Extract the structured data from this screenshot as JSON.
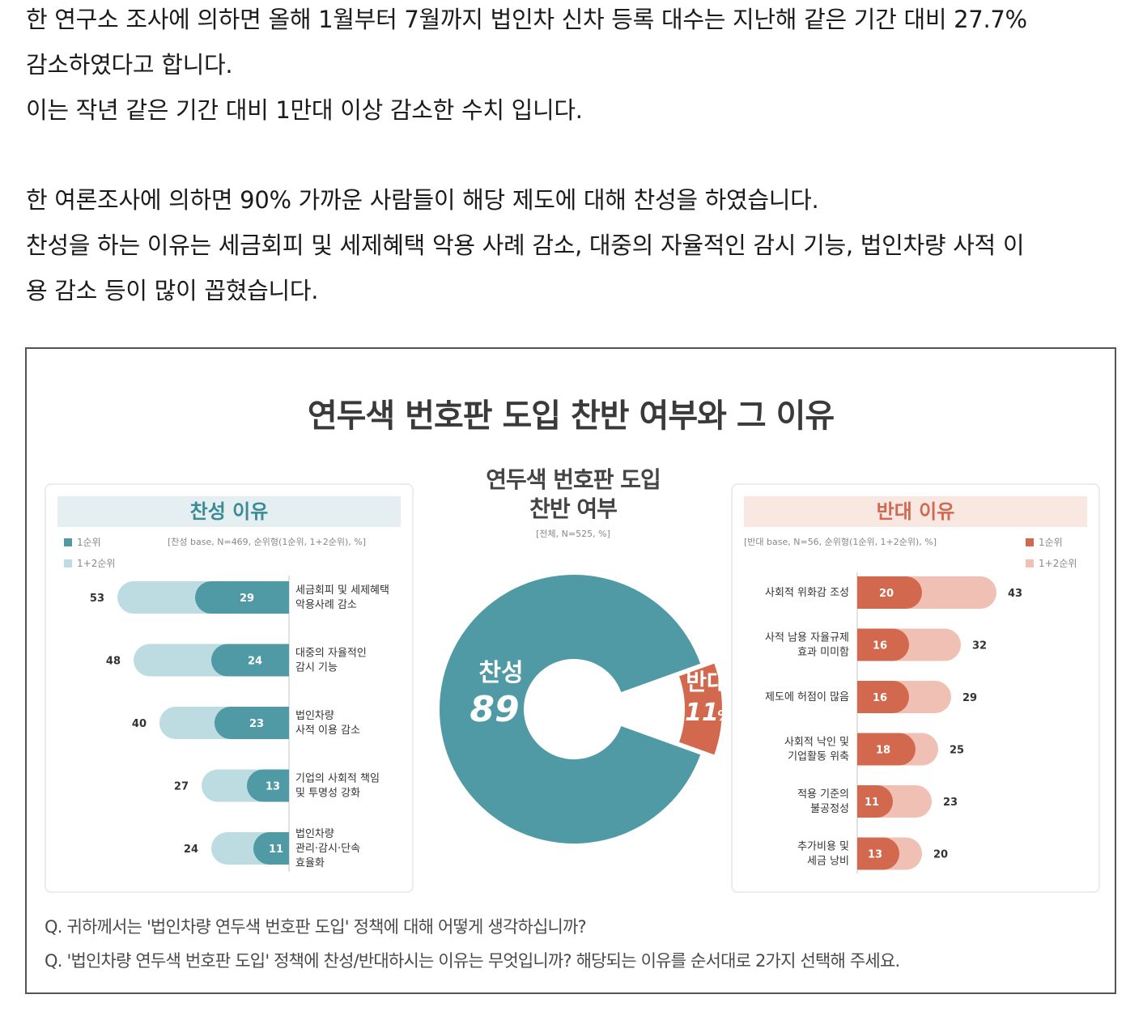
{
  "article": {
    "p1": [
      "한 연구소 조사에 의하면 올해 1월부터 7월까지 법인차 신차 등록 대수는 지난해 같은 기간 대비 27.7%",
      "감소하였다고 합니다.",
      "이는 작년 같은 기간 대비 1만대 이상 감소한 수치 입니다."
    ],
    "p2": [
      "한 여론조사에 의하면 90% 가까운 사람들이 해당 제도에 대해 찬성을 하였습니다.",
      "찬성을 하는 이유는 세금회피 및 세제혜택 악용 사례 감소, 대중의 자율적인 감시 기능, 법인차량 사적 이",
      "용 감소 등이 많이 꼽혔습니다."
    ]
  },
  "figure": {
    "title": "연두색 번호판 도입 찬반 여부와 그 이유",
    "question1": "Q. 귀하께서는 '법인차량 연두색 번호판 도입' 정책에 대해 어떻게 생각하십니까?",
    "question2": "Q. '법인차량 연두색 번호판 도입' 정책에 찬성/반대하시는 이유는 무엇입니까? 해당되는 이유를 순서대로 2가지 선택해 주세요."
  },
  "colors": {
    "teal_dark": "#4f9aa4",
    "teal_light": "#bcdce1",
    "red_dark": "#d2694f",
    "red_light": "#efc0b3"
  },
  "chart_data": [
    {
      "type": "bar",
      "title": "찬성 이유",
      "base": "[찬성 base, N=469, 순위형(1순위, 1+2순위), %]",
      "legend": [
        "1순위",
        "1+2순위"
      ],
      "categories": [
        [
          "세금회피 및 세제혜택",
          "악용사례 감소"
        ],
        [
          "대중의 자율적인",
          "감시 기능"
        ],
        [
          "법인차량",
          "사적 이용 감소"
        ],
        [
          "기업의 사회적 책임",
          "및 투명성 강화"
        ],
        [
          "법인차량",
          "관리·감시·단속",
          "효율화"
        ]
      ],
      "series": [
        {
          "name": "1순위",
          "values": [
            29,
            24,
            23,
            13,
            11
          ]
        },
        {
          "name": "1+2순위",
          "values": [
            53,
            48,
            40,
            27,
            24
          ]
        }
      ]
    },
    {
      "type": "pie",
      "title": [
        "연두색 번호판 도입",
        "찬반 여부"
      ],
      "base": "[전체, N=525, %]",
      "labels": [
        "찬성",
        "반대"
      ],
      "values": [
        89,
        11
      ],
      "value_labels": [
        "89",
        "11"
      ],
      "unit": "%"
    },
    {
      "type": "bar",
      "title": "반대 이유",
      "base": "[반대 base, N=56, 순위형(1순위, 1+2순위), %]",
      "legend": [
        "1순위",
        "1+2순위"
      ],
      "categories": [
        [
          "사회적 위화감 조성"
        ],
        [
          "사적 남용 자율규제",
          "효과 미미함"
        ],
        [
          "제도에 허점이 많음"
        ],
        [
          "사회적 낙인 및",
          "기업활동 위축"
        ],
        [
          "적용 기준의",
          "불공정성"
        ],
        [
          "추가비용 및",
          "세금 낭비"
        ]
      ],
      "series": [
        {
          "name": "1순위",
          "values": [
            20,
            16,
            16,
            18,
            11,
            13
          ]
        },
        {
          "name": "1+2순위",
          "values": [
            43,
            32,
            29,
            25,
            23,
            20
          ]
        }
      ]
    }
  ]
}
